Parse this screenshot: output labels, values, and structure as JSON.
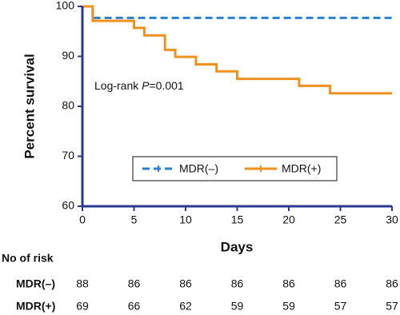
{
  "chart_data": {
    "type": "line",
    "step": "post",
    "y_label": "Percent survival",
    "x_label": "Days",
    "xlim": [
      0,
      30
    ],
    "xticks": [
      0,
      5,
      10,
      15,
      20,
      25,
      30
    ],
    "ylim": [
      60,
      100
    ],
    "yticks": [
      60,
      70,
      80,
      90,
      100
    ],
    "series": [
      {
        "name": "MDR(–)",
        "color": "#2a7fd6",
        "dash": true,
        "x": [
          0,
          1,
          30
        ],
        "values": [
          100,
          97.7,
          97.7
        ]
      },
      {
        "name": "MDR(+)",
        "color": "#f0901e",
        "dash": false,
        "x": [
          0,
          1,
          5,
          6,
          8,
          9,
          11,
          13,
          15,
          21,
          24,
          30
        ],
        "values": [
          100,
          97.1,
          95.7,
          94.2,
          91.3,
          89.9,
          88.4,
          87.0,
          85.5,
          84.1,
          82.6,
          82.6
        ]
      }
    ],
    "annotation": {
      "prefix": "Log-rank ",
      "italic": "P",
      "suffix": "=0.001"
    },
    "risk_table": {
      "title": "No of risk",
      "rows": [
        {
          "name": "MDR(–)",
          "values": [
            "88",
            "86",
            "86",
            "86",
            "86",
            "86",
            "86"
          ]
        },
        {
          "name": "MDR(+)",
          "values": [
            "69",
            "66",
            "62",
            "59",
            "59",
            "57",
            "57"
          ]
        }
      ]
    }
  }
}
